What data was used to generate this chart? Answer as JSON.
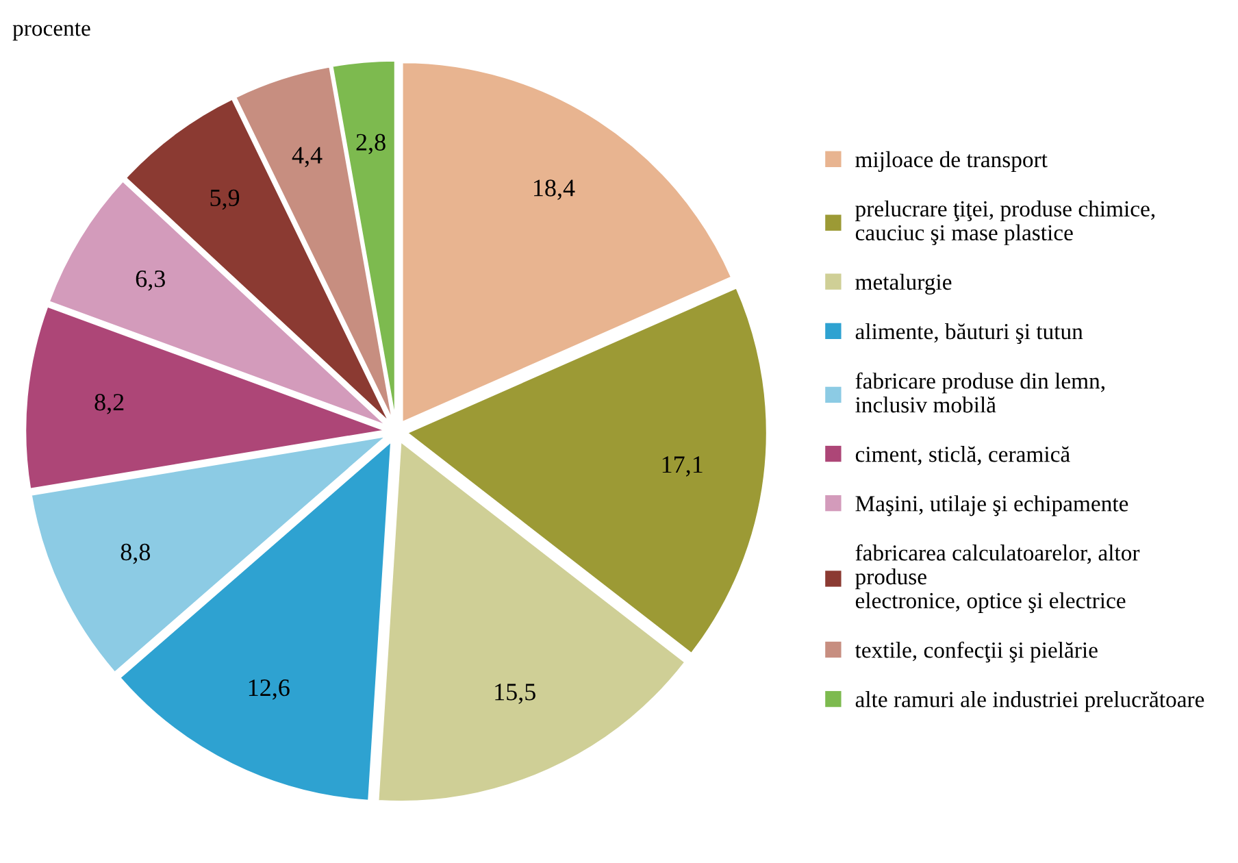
{
  "chart_data": {
    "type": "pie",
    "annotations": [
      "procente"
    ],
    "categories": [
      "mijloace de transport",
      "prelucrare ţiţei, produse chimice,\ncauciuc şi mase plastice",
      "metalurgie",
      "alimente, băuturi şi tutun",
      "fabricare produse din lemn,\ninclusiv mobilă",
      "ciment, sticlă, ceramică",
      "Maşini, utilaje şi echipamente",
      "fabricarea calculatoarelor, altor\nproduse\nelectronice, optice şi electrice",
      "textile, confecţii şi pielărie",
      "alte ramuri ale industriei prelucrătoare"
    ],
    "values": [
      18.4,
      17.1,
      15.5,
      12.6,
      8.8,
      8.2,
      6.3,
      5.9,
      4.4,
      2.8
    ],
    "colors": [
      "#e8b490",
      "#9c9a35",
      "#cfcf96",
      "#2ea2d1",
      "#8ccbe4",
      "#ad4677",
      "#d39bbb",
      "#8b3a32",
      "#c78e80",
      "#7dba4f"
    ],
    "value_labels": [
      "18,4",
      "17,1",
      "15,5",
      "12,6",
      "8,8",
      "8,2",
      "6,3",
      "5,9",
      "4,4",
      "2,8"
    ],
    "legend": "right"
  }
}
